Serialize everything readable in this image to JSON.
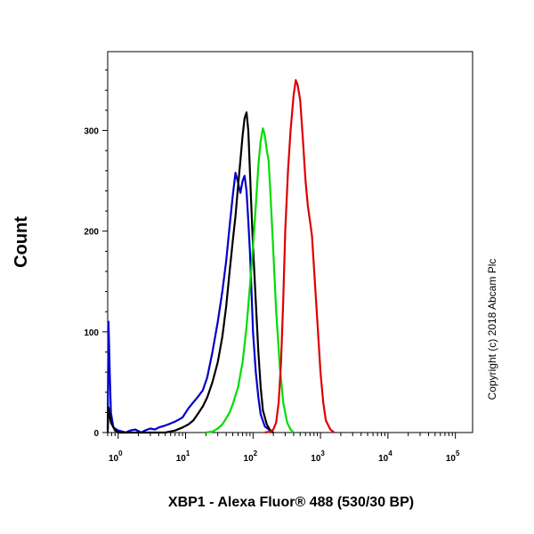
{
  "chart_data": {
    "type": "line",
    "title": "",
    "xlabel": "XBP1 - Alexa Fluor® 488 (530/30 BP)",
    "ylabel": "Count",
    "x_scale": "log",
    "xlim": [
      0.7,
      180000
    ],
    "ylim": [
      0,
      370
    ],
    "x_ticks": [
      {
        "value": 1,
        "base": "10",
        "exp": "0"
      },
      {
        "value": 10,
        "base": "10",
        "exp": "1"
      },
      {
        "value": 100,
        "base": "10",
        "exp": "2"
      },
      {
        "value": 1000,
        "base": "10",
        "exp": "3"
      },
      {
        "value": 10000,
        "base": "10",
        "exp": "4"
      },
      {
        "value": 100000,
        "base": "10",
        "exp": "5"
      }
    ],
    "y_ticks": [
      {
        "value": 0,
        "label": "0"
      },
      {
        "value": 100,
        "label": "100"
      },
      {
        "value": 200,
        "label": "200"
      },
      {
        "value": 300,
        "label": "300"
      }
    ],
    "grid": false,
    "legend": "none",
    "series": [
      {
        "color": "#0000cc",
        "points": [
          [
            0.7,
            3
          ],
          [
            0.72,
            110
          ],
          [
            0.75,
            60
          ],
          [
            0.78,
            20
          ],
          [
            0.85,
            5
          ],
          [
            1.0,
            2
          ],
          [
            1.3,
            0
          ],
          [
            1.5,
            2
          ],
          [
            1.8,
            3
          ],
          [
            2.2,
            0
          ],
          [
            2.5,
            2
          ],
          [
            3,
            4
          ],
          [
            3.5,
            3
          ],
          [
            4,
            5
          ],
          [
            5,
            7
          ],
          [
            6,
            9
          ],
          [
            7,
            11
          ],
          [
            8,
            13
          ],
          [
            9,
            15
          ],
          [
            11,
            24
          ],
          [
            13,
            30
          ],
          [
            15,
            35
          ],
          [
            18,
            42
          ],
          [
            21,
            55
          ],
          [
            25,
            80
          ],
          [
            30,
            110
          ],
          [
            35,
            140
          ],
          [
            40,
            170
          ],
          [
            45,
            205
          ],
          [
            50,
            235
          ],
          [
            55,
            258
          ],
          [
            60,
            248
          ],
          [
            65,
            238
          ],
          [
            70,
            250
          ],
          [
            75,
            255
          ],
          [
            80,
            240
          ],
          [
            85,
            210
          ],
          [
            90,
            180
          ],
          [
            95,
            140
          ],
          [
            100,
            100
          ],
          [
            110,
            60
          ],
          [
            120,
            35
          ],
          [
            130,
            18
          ],
          [
            150,
            6
          ],
          [
            180,
            2
          ],
          [
            200,
            0
          ]
        ]
      },
      {
        "color": "#000000",
        "points": [
          [
            0.7,
            0
          ],
          [
            0.72,
            25
          ],
          [
            0.78,
            10
          ],
          [
            0.9,
            2
          ],
          [
            1.0,
            0
          ],
          [
            5,
            0
          ],
          [
            7,
            2
          ],
          [
            9,
            5
          ],
          [
            11,
            8
          ],
          [
            13,
            12
          ],
          [
            15,
            18
          ],
          [
            18,
            26
          ],
          [
            21,
            35
          ],
          [
            25,
            50
          ],
          [
            30,
            70
          ],
          [
            35,
            95
          ],
          [
            40,
            125
          ],
          [
            45,
            160
          ],
          [
            50,
            190
          ],
          [
            55,
            215
          ],
          [
            60,
            245
          ],
          [
            65,
            270
          ],
          [
            70,
            295
          ],
          [
            75,
            312
          ],
          [
            80,
            318
          ],
          [
            85,
            300
          ],
          [
            90,
            260
          ],
          [
            95,
            220
          ],
          [
            100,
            185
          ],
          [
            110,
            130
          ],
          [
            120,
            80
          ],
          [
            130,
            45
          ],
          [
            140,
            22
          ],
          [
            160,
            8
          ],
          [
            180,
            2
          ],
          [
            200,
            0
          ]
        ]
      },
      {
        "color": "#00dd00",
        "points": [
          [
            20,
            0
          ],
          [
            25,
            1
          ],
          [
            30,
            4
          ],
          [
            35,
            8
          ],
          [
            40,
            14
          ],
          [
            45,
            20
          ],
          [
            50,
            28
          ],
          [
            60,
            45
          ],
          [
            70,
            70
          ],
          [
            80,
            105
          ],
          [
            90,
            145
          ],
          [
            100,
            185
          ],
          [
            110,
            225
          ],
          [
            120,
            265
          ],
          [
            130,
            290
          ],
          [
            140,
            302
          ],
          [
            150,
            295
          ],
          [
            160,
            280
          ],
          [
            170,
            270
          ],
          [
            180,
            240
          ],
          [
            200,
            180
          ],
          [
            220,
            120
          ],
          [
            250,
            65
          ],
          [
            280,
            30
          ],
          [
            320,
            10
          ],
          [
            360,
            3
          ],
          [
            400,
            0
          ]
        ]
      },
      {
        "color": "#dd0000",
        "points": [
          [
            150,
            0
          ],
          [
            180,
            1
          ],
          [
            200,
            3
          ],
          [
            220,
            10
          ],
          [
            240,
            30
          ],
          [
            260,
            70
          ],
          [
            280,
            130
          ],
          [
            300,
            200
          ],
          [
            330,
            260
          ],
          [
            360,
            300
          ],
          [
            400,
            335
          ],
          [
            430,
            350
          ],
          [
            460,
            345
          ],
          [
            500,
            330
          ],
          [
            550,
            290
          ],
          [
            600,
            250
          ],
          [
            650,
            225
          ],
          [
            700,
            210
          ],
          [
            750,
            195
          ],
          [
            800,
            165
          ],
          [
            900,
            110
          ],
          [
            1000,
            60
          ],
          [
            1100,
            30
          ],
          [
            1200,
            12
          ],
          [
            1400,
            3
          ],
          [
            1600,
            0
          ]
        ]
      }
    ]
  },
  "copyright": "Copyright (c) 2018 Abcam Plc"
}
